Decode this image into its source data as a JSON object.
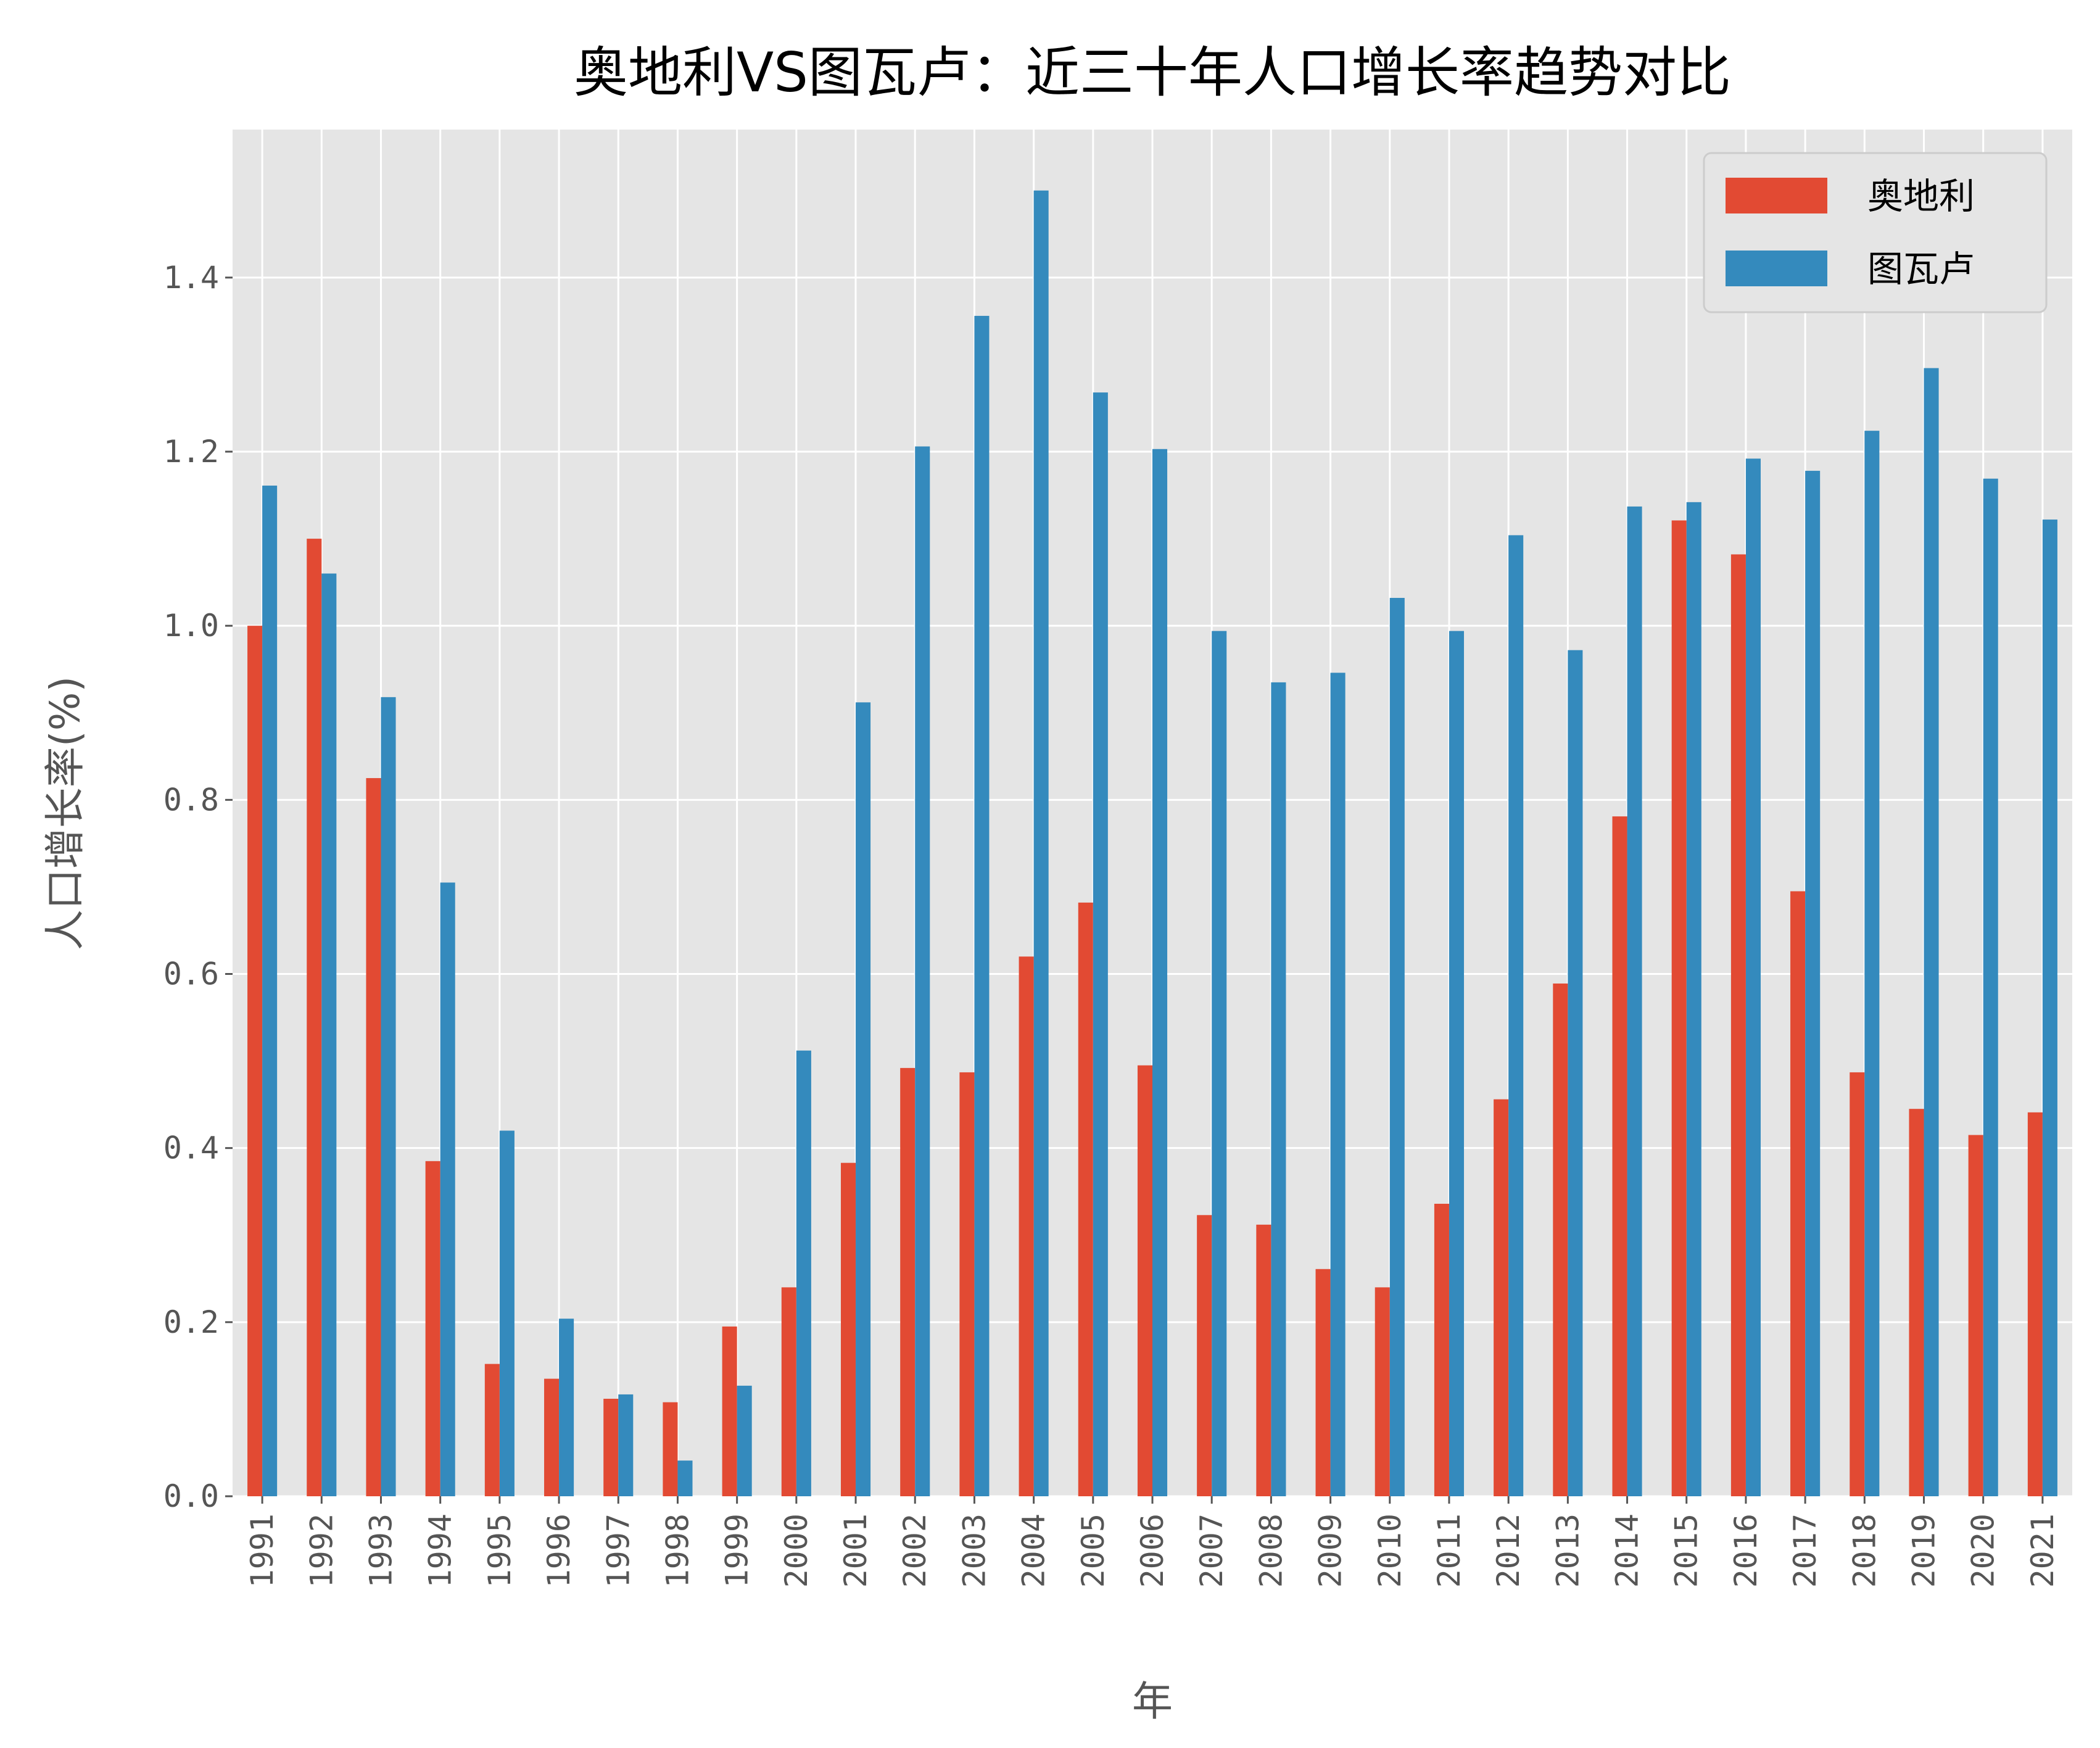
{
  "chart_data": {
    "type": "bar",
    "title": "奥地利VS图瓦卢：近三十年人口增长率趋势对比",
    "xlabel": "年",
    "ylabel": "人口增长率(%)",
    "ylim": [
      0,
      1.57
    ],
    "yticks": [
      "0.0",
      "0.2",
      "0.4",
      "0.6",
      "0.8",
      "1.0",
      "1.2",
      "1.4"
    ],
    "grid": true,
    "legend_position": "top-right",
    "categories": [
      "1991",
      "1992",
      "1993",
      "1994",
      "1995",
      "1996",
      "1997",
      "1998",
      "1999",
      "2000",
      "2001",
      "2002",
      "2003",
      "2004",
      "2005",
      "2006",
      "2007",
      "2008",
      "2009",
      "2010",
      "2011",
      "2012",
      "2013",
      "2014",
      "2015",
      "2016",
      "2017",
      "2018",
      "2019",
      "2020",
      "2021"
    ],
    "series": [
      {
        "name": "奥地利",
        "color": "#E24A33",
        "values": [
          1.0,
          1.1,
          0.825,
          0.385,
          0.152,
          0.135,
          0.112,
          0.108,
          0.195,
          0.24,
          0.383,
          0.492,
          0.487,
          0.62,
          0.682,
          0.495,
          0.323,
          0.312,
          0.261,
          0.24,
          0.336,
          0.456,
          0.589,
          0.781,
          1.121,
          1.082,
          0.695,
          0.487,
          0.445,
          0.415,
          0.441
        ]
      },
      {
        "name": "图瓦卢",
        "color": "#348ABD",
        "values": [
          1.161,
          1.06,
          0.918,
          0.705,
          0.42,
          0.204,
          0.117,
          0.041,
          0.127,
          0.512,
          0.912,
          1.206,
          1.356,
          1.5,
          1.268,
          1.203,
          0.994,
          0.935,
          0.946,
          1.032,
          0.994,
          1.104,
          0.972,
          1.137,
          1.142,
          1.192,
          1.178,
          1.224,
          1.296,
          1.169,
          1.122
        ]
      }
    ]
  },
  "style": {
    "plot_bg": "#E5E5E5",
    "grid_color": "#FFFFFF",
    "tick_color": "#555555"
  }
}
